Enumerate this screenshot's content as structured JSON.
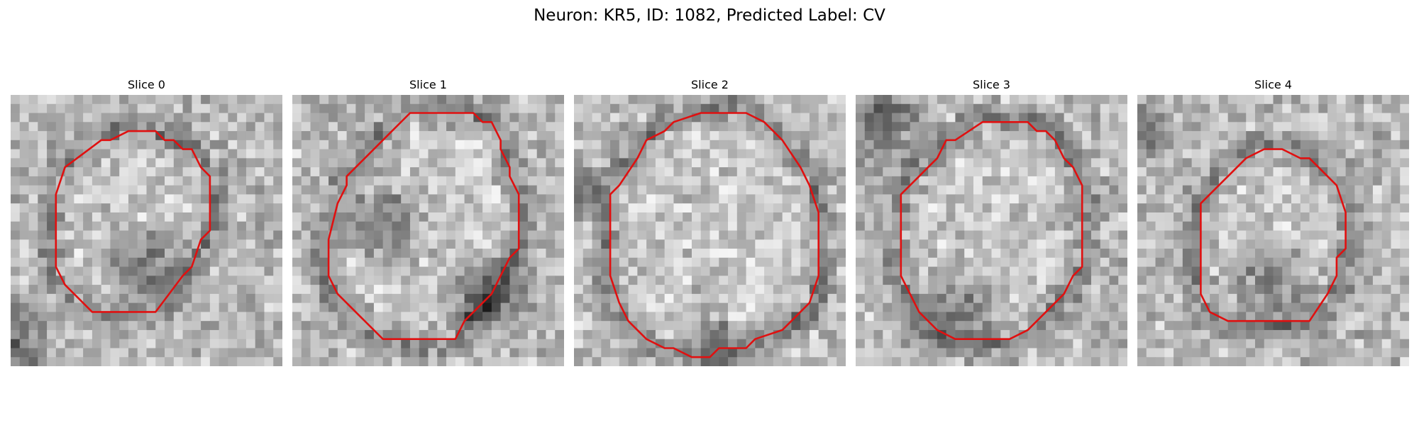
{
  "figure": {
    "title": "Neuron: KR5, ID: 1082, Predicted Label: CV"
  },
  "panels": [
    {
      "title": "Slice 0",
      "contour_color": "#e01010",
      "mask_kind": "octagon-compact",
      "image": "grayscale-microscopy-slice"
    },
    {
      "title": "Slice 1",
      "contour_color": "#e01010",
      "mask_kind": "octagon-large",
      "image": "grayscale-microscopy-slice"
    },
    {
      "title": "Slice 2",
      "contour_color": "#e01010",
      "mask_kind": "octagon-large",
      "image": "grayscale-microscopy-slice"
    },
    {
      "title": "Slice 3",
      "contour_color": "#e01010",
      "mask_kind": "octagon-medium",
      "image": "grayscale-microscopy-slice"
    },
    {
      "title": "Slice 4",
      "contour_color": "#e01010",
      "mask_kind": "octagon-small",
      "image": "grayscale-microscopy-slice"
    }
  ]
}
